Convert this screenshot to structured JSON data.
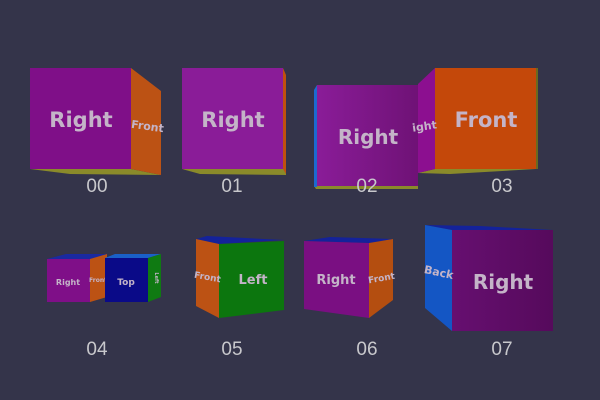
{
  "colors": {
    "background": "#34344a",
    "right": "#861c94",
    "front": "#c0500f",
    "left": "#0f7a12",
    "top": "#0f1a8e",
    "back": "#1656c8",
    "bottom": "#8a8a2a"
  },
  "cubes": [
    {
      "label": "00",
      "faces": {
        "main": "Right",
        "side": "Front"
      }
    },
    {
      "label": "01",
      "faces": {
        "main": "Right"
      }
    },
    {
      "label": "02",
      "faces": {
        "main": "Right"
      }
    },
    {
      "label": "03",
      "faces": {
        "main": "Front",
        "side": "ight"
      }
    },
    {
      "label": "04",
      "faces": {
        "main": "Right",
        "side": "Front",
        "main2": "Top",
        "side2": "Left"
      }
    },
    {
      "label": "05",
      "faces": {
        "main": "Left",
        "side": "Front"
      }
    },
    {
      "label": "06",
      "faces": {
        "main": "Right",
        "side": "Front"
      }
    },
    {
      "label": "07",
      "faces": {
        "main": "Right",
        "side": "Back"
      }
    }
  ]
}
